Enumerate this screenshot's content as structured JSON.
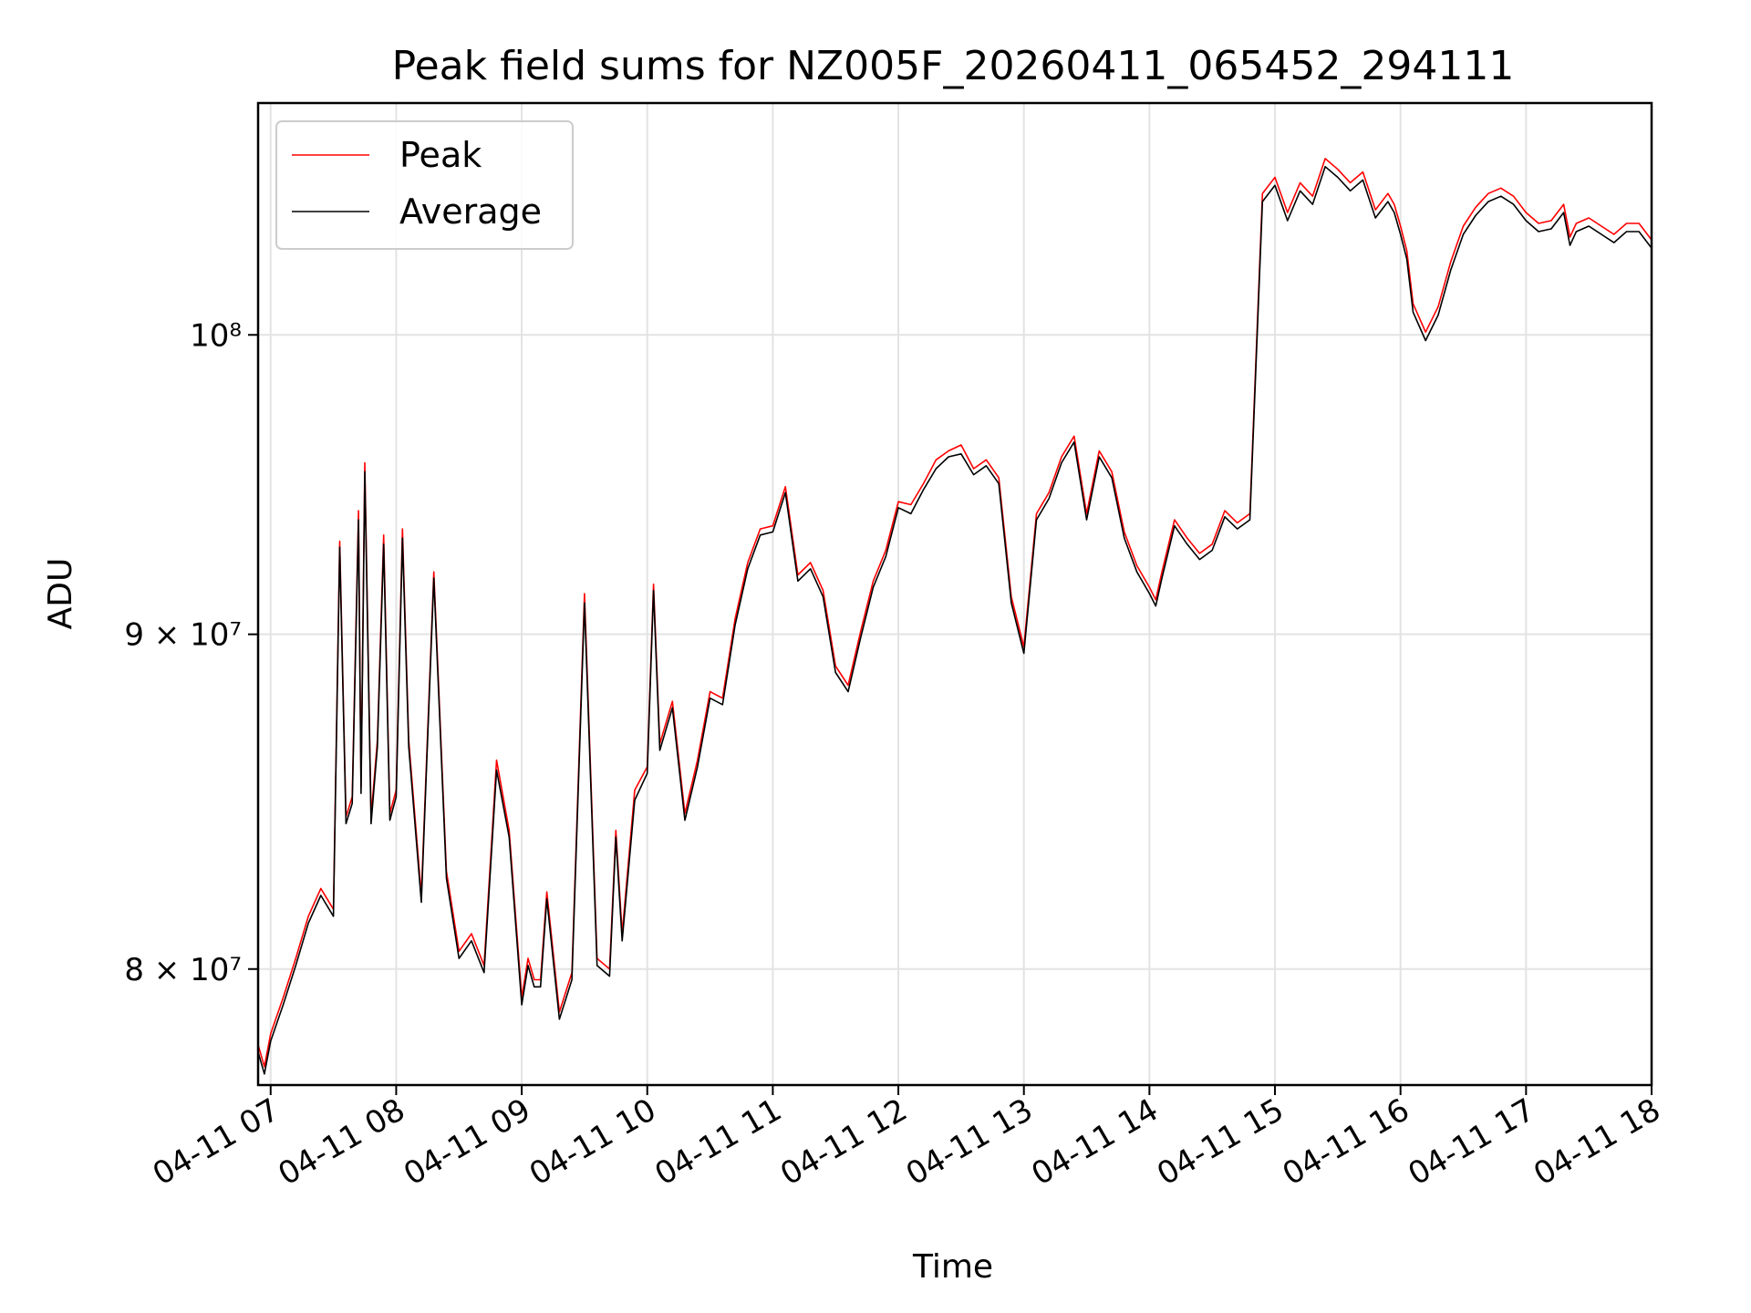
{
  "chart_data": {
    "type": "line",
    "title": "Peak field sums for NZ005F_20260411_065452_294111",
    "xlabel": "Time",
    "ylabel": "ADU",
    "yscale": "log",
    "ylim": [
      76800000,
      108500000
    ],
    "xlim": [
      6.9,
      18.0
    ],
    "grid": true,
    "legend": {
      "position": "top-left",
      "entries": [
        "Peak",
        "Average"
      ]
    },
    "x_ticks": [
      {
        "value": 7,
        "label": "04-11 07"
      },
      {
        "value": 8,
        "label": "04-11 08"
      },
      {
        "value": 9,
        "label": "04-11 09"
      },
      {
        "value": 10,
        "label": "04-11 10"
      },
      {
        "value": 11,
        "label": "04-11 11"
      },
      {
        "value": 12,
        "label": "04-11 12"
      },
      {
        "value": 13,
        "label": "04-11 13"
      },
      {
        "value": 14,
        "label": "04-11 14"
      },
      {
        "value": 15,
        "label": "04-11 15"
      },
      {
        "value": 16,
        "label": "04-11 16"
      },
      {
        "value": 17,
        "label": "04-11 17"
      },
      {
        "value": 18,
        "label": "04-11 18"
      }
    ],
    "y_ticks": [
      {
        "value": 80000000,
        "label": "8 × 10⁷"
      },
      {
        "value": 90000000,
        "label": "9 × 10⁷"
      },
      {
        "value": 100000000,
        "label": "10⁸"
      }
    ],
    "x_unit": "hour of 2026-04-11",
    "series": [
      {
        "name": "Average",
        "color": "#000000",
        "x": [
          6.9,
          6.95,
          7.0,
          7.1,
          7.2,
          7.3,
          7.4,
          7.5,
          7.55,
          7.6,
          7.65,
          7.7,
          7.72,
          7.75,
          7.8,
          7.85,
          7.9,
          7.95,
          8.0,
          8.05,
          8.1,
          8.2,
          8.3,
          8.4,
          8.5,
          8.6,
          8.7,
          8.8,
          8.9,
          9.0,
          9.05,
          9.1,
          9.15,
          9.2,
          9.3,
          9.4,
          9.5,
          9.6,
          9.7,
          9.75,
          9.8,
          9.9,
          10.0,
          10.05,
          10.1,
          10.2,
          10.3,
          10.4,
          10.5,
          10.6,
          10.7,
          10.8,
          10.9,
          11.0,
          11.1,
          11.2,
          11.3,
          11.4,
          11.5,
          11.6,
          11.7,
          11.8,
          11.9,
          12.0,
          12.1,
          12.2,
          12.3,
          12.4,
          12.5,
          12.6,
          12.7,
          12.8,
          12.9,
          13.0,
          13.1,
          13.2,
          13.3,
          13.4,
          13.5,
          13.6,
          13.7,
          13.8,
          13.9,
          14.0,
          14.05,
          14.1,
          14.2,
          14.3,
          14.4,
          14.5,
          14.6,
          14.7,
          14.8,
          14.9,
          15.0,
          15.1,
          15.2,
          15.3,
          15.4,
          15.5,
          15.6,
          15.7,
          15.8,
          15.9,
          15.95,
          16.0,
          16.05,
          16.1,
          16.2,
          16.3,
          16.4,
          16.5,
          16.6,
          16.7,
          16.8,
          16.9,
          17.0,
          17.1,
          17.2,
          17.3,
          17.35,
          17.4,
          17.5,
          17.6,
          17.7,
          17.8,
          17.9,
          18.0
        ],
        "values": [
          77700000,
          77100000,
          78000000,
          79000000,
          80100000,
          81300000,
          82100000,
          81500000,
          92800000,
          84200000,
          84800000,
          93700000,
          85100000,
          95300000,
          84200000,
          86500000,
          92900000,
          84300000,
          85000000,
          93100000,
          86500000,
          81900000,
          91800000,
          82600000,
          80300000,
          80800000,
          79900000,
          85800000,
          83800000,
          79000000,
          80100000,
          79500000,
          79500000,
          82000000,
          78600000,
          79700000,
          91000000,
          80100000,
          79800000,
          83800000,
          80800000,
          84900000,
          85700000,
          91400000,
          86400000,
          87700000,
          84300000,
          85900000,
          88000000,
          87800000,
          90300000,
          92100000,
          93200000,
          93300000,
          94600000,
          91700000,
          92100000,
          91200000,
          88800000,
          88200000,
          89900000,
          91500000,
          92500000,
          94100000,
          93900000,
          94700000,
          95400000,
          95800000,
          95900000,
          95200000,
          95500000,
          94900000,
          91000000,
          89400000,
          93700000,
          94400000,
          95600000,
          96300000,
          93700000,
          95800000,
          95100000,
          93100000,
          92000000,
          91300000,
          90900000,
          91800000,
          93500000,
          92900000,
          92400000,
          92700000,
          93800000,
          93400000,
          93700000,
          104800000,
          105400000,
          104100000,
          105200000,
          104700000,
          106100000,
          105700000,
          105200000,
          105600000,
          104200000,
          104800000,
          104400000,
          103600000,
          102700000,
          100800000,
          99800000,
          100700000,
          102300000,
          103600000,
          104300000,
          104800000,
          105000000,
          104700000,
          104100000,
          103700000,
          103800000,
          104400000,
          103200000,
          103700000,
          103900000,
          103600000,
          103300000,
          103700000,
          103700000,
          103100000
        ]
      },
      {
        "name": "Peak",
        "color": "#ff0000",
        "x": [
          6.9,
          6.95,
          7.0,
          7.1,
          7.2,
          7.3,
          7.4,
          7.5,
          7.55,
          7.6,
          7.65,
          7.7,
          7.72,
          7.75,
          7.8,
          7.85,
          7.9,
          7.95,
          8.0,
          8.05,
          8.1,
          8.2,
          8.3,
          8.4,
          8.5,
          8.6,
          8.7,
          8.8,
          8.9,
          9.0,
          9.05,
          9.1,
          9.15,
          9.2,
          9.3,
          9.4,
          9.5,
          9.6,
          9.7,
          9.75,
          9.8,
          9.9,
          10.0,
          10.05,
          10.1,
          10.2,
          10.3,
          10.4,
          10.5,
          10.6,
          10.7,
          10.8,
          10.9,
          11.0,
          11.1,
          11.2,
          11.3,
          11.4,
          11.5,
          11.6,
          11.7,
          11.8,
          11.9,
          12.0,
          12.1,
          12.2,
          12.3,
          12.4,
          12.5,
          12.6,
          12.7,
          12.8,
          12.9,
          13.0,
          13.1,
          13.2,
          13.3,
          13.4,
          13.5,
          13.6,
          13.7,
          13.8,
          13.9,
          14.0,
          14.05,
          14.1,
          14.2,
          14.3,
          14.4,
          14.5,
          14.6,
          14.7,
          14.8,
          14.9,
          15.0,
          15.1,
          15.2,
          15.3,
          15.4,
          15.5,
          15.6,
          15.7,
          15.8,
          15.9,
          15.95,
          16.0,
          16.05,
          16.1,
          16.2,
          16.3,
          16.4,
          16.5,
          16.6,
          16.7,
          16.8,
          16.9,
          17.0,
          17.1,
          17.2,
          17.3,
          17.35,
          17.4,
          17.5,
          17.6,
          17.7,
          17.8,
          17.9,
          18.0
        ],
        "values": [
          77900000,
          77300000,
          78200000,
          79200000,
          80300000,
          81500000,
          82300000,
          81700000,
          93000000,
          84400000,
          85000000,
          94000000,
          85300000,
          95600000,
          84400000,
          86700000,
          93200000,
          84500000,
          85200000,
          93400000,
          86700000,
          82100000,
          92000000,
          82800000,
          80500000,
          81000000,
          80100000,
          86100000,
          84000000,
          79200000,
          80300000,
          79700000,
          79700000,
          82200000,
          78800000,
          79900000,
          91300000,
          80300000,
          80000000,
          84000000,
          81000000,
          85200000,
          85900000,
          91600000,
          86600000,
          87900000,
          84500000,
          86100000,
          88200000,
          88000000,
          90500000,
          92300000,
          93400000,
          93500000,
          94800000,
          91900000,
          92300000,
          91400000,
          89000000,
          88400000,
          90100000,
          91700000,
          92700000,
          94300000,
          94200000,
          94900000,
          95700000,
          96000000,
          96200000,
          95400000,
          95700000,
          95100000,
          91200000,
          89600000,
          93900000,
          94600000,
          95800000,
          96500000,
          93900000,
          96000000,
          95300000,
          93300000,
          92200000,
          91500000,
          91100000,
          92000000,
          93700000,
          93100000,
          92600000,
          92900000,
          94000000,
          93600000,
          93900000,
          105100000,
          105700000,
          104400000,
          105500000,
          105000000,
          106400000,
          106000000,
          105500000,
          105900000,
          104500000,
          105100000,
          104700000,
          103900000,
          103000000,
          101100000,
          100100000,
          101000000,
          102600000,
          103900000,
          104600000,
          105100000,
          105300000,
          105000000,
          104400000,
          104000000,
          104100000,
          104700000,
          103500000,
          104000000,
          104200000,
          103900000,
          103600000,
          104000000,
          104000000,
          103400000
        ]
      }
    ]
  }
}
